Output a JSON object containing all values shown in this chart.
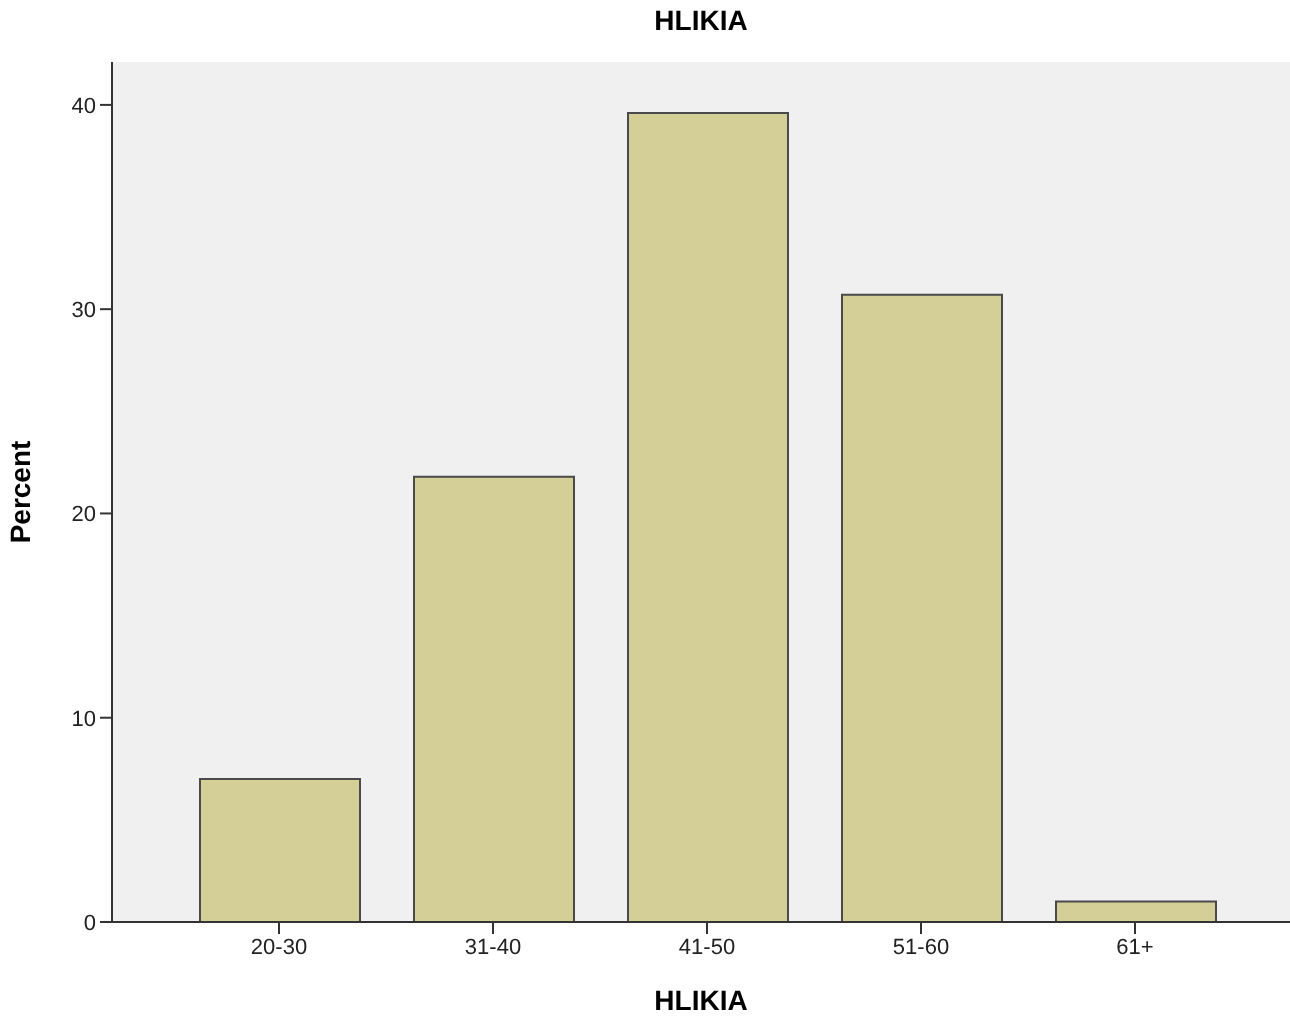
{
  "chart_data": {
    "type": "bar",
    "title": "HLIKIA",
    "xlabel": "HLIKIA",
    "ylabel": "Percent",
    "categories": [
      "20-30",
      "31-40",
      "41-50",
      "51-60",
      "61+"
    ],
    "values": [
      7.0,
      21.8,
      39.6,
      30.7,
      1.0
    ],
    "color": "#d3cf97",
    "ylim": [
      0,
      42.1
    ],
    "yticks": [
      0,
      10,
      20,
      30,
      40
    ],
    "grid": false
  }
}
